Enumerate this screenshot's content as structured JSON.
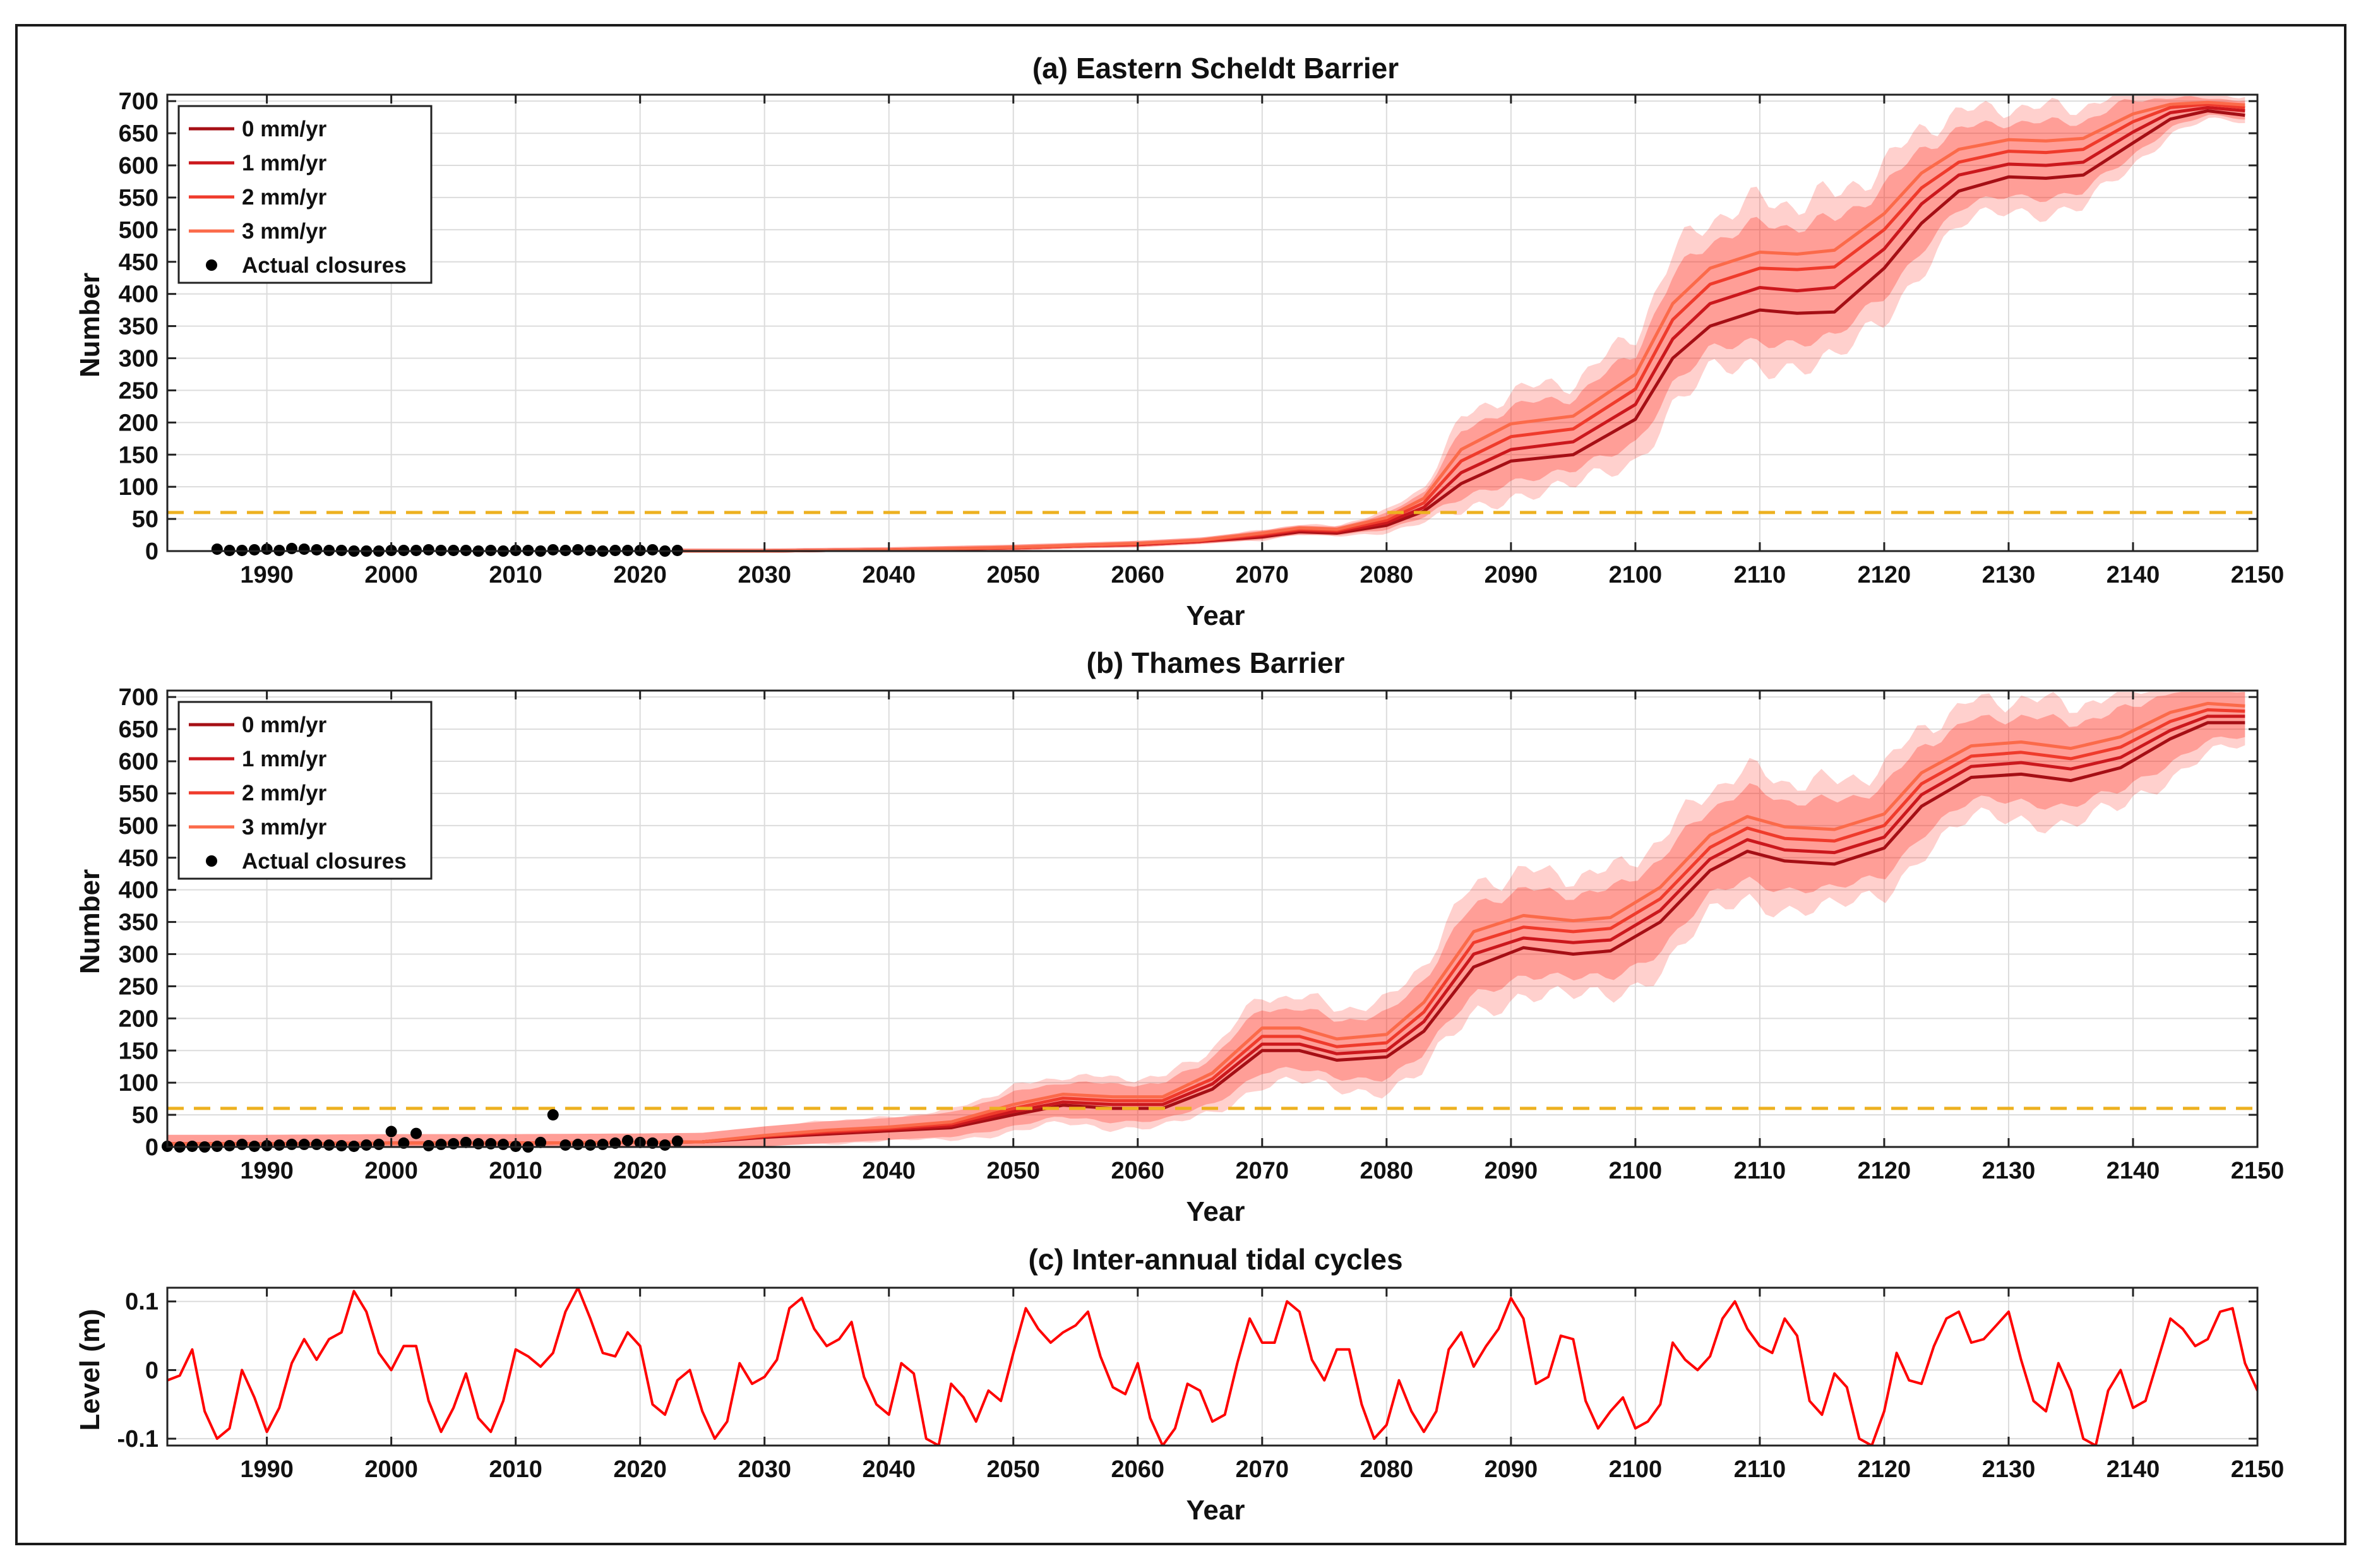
{
  "chart_data": [
    {
      "type": "line",
      "title": "(a) Eastern Scheldt  Barrier",
      "xlabel": "Year",
      "ylabel": "Number",
      "xlim": [
        1982,
        2150
      ],
      "ylim": [
        0,
        710
      ],
      "x_ticks": [
        1990,
        2000,
        2010,
        2020,
        2030,
        2040,
        2050,
        2060,
        2070,
        2080,
        2090,
        2100,
        2110,
        2120,
        2130,
        2140,
        2150
      ],
      "y_ticks": [
        0,
        50,
        100,
        150,
        200,
        250,
        300,
        350,
        400,
        450,
        500,
        550,
        600,
        650,
        700
      ],
      "grid": true,
      "legend_position": "top-left",
      "threshold": 60,
      "threshold_color": "#EDB120",
      "legend": [
        "0 mm/yr",
        "1 mm/yr",
        "2 mm/yr",
        "3 mm/yr",
        "Actual closures"
      ],
      "x": [
        2023,
        2030,
        2040,
        2050,
        2055,
        2060,
        2065,
        2070,
        2073,
        2076,
        2080,
        2083,
        2086,
        2090,
        2095,
        2100,
        2103,
        2106,
        2110,
        2113,
        2116,
        2120,
        2123,
        2126,
        2130,
        2133,
        2136,
        2140,
        2143,
        2146,
        2149
      ],
      "series": [
        {
          "name": "0 mm/yr",
          "color": "#A50F15",
          "values": [
            0,
            0,
            2,
            5,
            8,
            10,
            15,
            22,
            30,
            28,
            40,
            62,
            105,
            140,
            150,
            205,
            300,
            350,
            375,
            370,
            372,
            440,
            510,
            560,
            582,
            580,
            585,
            635,
            672,
            685,
            678
          ]
        },
        {
          "name": "1 mm/yr",
          "color": "#CB181D",
          "values": [
            0,
            0,
            2,
            5,
            8,
            10,
            15,
            24,
            32,
            30,
            44,
            68,
            122,
            158,
            170,
            228,
            330,
            385,
            410,
            405,
            410,
            470,
            540,
            585,
            602,
            600,
            605,
            652,
            682,
            690,
            685
          ]
        },
        {
          "name": "2 mm/yr",
          "color": "#EF3B2C",
          "values": [
            0,
            0,
            2,
            5,
            8,
            11,
            16,
            26,
            34,
            32,
            48,
            75,
            140,
            178,
            190,
            252,
            360,
            415,
            440,
            438,
            442,
            500,
            565,
            605,
            622,
            620,
            625,
            668,
            690,
            695,
            690
          ]
        },
        {
          "name": "3 mm/yr",
          "color": "#FB6A4A",
          "values": [
            0,
            0,
            2,
            6,
            9,
            12,
            17,
            28,
            36,
            34,
            52,
            82,
            158,
            198,
            210,
            275,
            385,
            440,
            465,
            462,
            468,
            525,
            588,
            625,
            640,
            638,
            642,
            680,
            695,
            698,
            694
          ]
        }
      ],
      "actual_closures": {
        "years": [
          1986,
          1987,
          1988,
          1989,
          1990,
          1991,
          1992,
          1993,
          1994,
          1995,
          1996,
          1997,
          1998,
          1999,
          2000,
          2001,
          2002,
          2003,
          2004,
          2005,
          2006,
          2007,
          2008,
          2009,
          2010,
          2011,
          2012,
          2013,
          2014,
          2015,
          2016,
          2017,
          2018,
          2019,
          2020,
          2021,
          2022,
          2023
        ],
        "values": [
          3,
          1,
          1,
          2,
          3,
          1,
          4,
          3,
          2,
          1,
          1,
          0,
          0,
          0,
          1,
          1,
          1,
          2,
          1,
          1,
          1,
          0,
          1,
          0,
          1,
          1,
          0,
          2,
          1,
          2,
          1,
          0,
          1,
          1,
          1,
          2,
          0,
          1
        ]
      }
    },
    {
      "type": "line",
      "title": "(b) Thames Barrier",
      "xlabel": "Year",
      "ylabel": "Number",
      "xlim": [
        1982,
        2150
      ],
      "ylim": [
        0,
        710
      ],
      "x_ticks": [
        1990,
        2000,
        2010,
        2020,
        2030,
        2040,
        2050,
        2060,
        2070,
        2080,
        2090,
        2100,
        2110,
        2120,
        2130,
        2140,
        2150
      ],
      "y_ticks": [
        0,
        50,
        100,
        150,
        200,
        250,
        300,
        350,
        400,
        450,
        500,
        550,
        600,
        650,
        700
      ],
      "grid": true,
      "legend_position": "top-left",
      "threshold": 60,
      "threshold_color": "#EDB120",
      "legend": [
        "0 mm/yr",
        "1 mm/yr",
        "2 mm/yr",
        "3 mm/yr",
        "Actual closures"
      ],
      "x": [
        1982,
        1990,
        2000,
        2010,
        2020,
        2025,
        2030,
        2035,
        2040,
        2045,
        2050,
        2054,
        2058,
        2062,
        2066,
        2070,
        2073,
        2076,
        2080,
        2083,
        2087,
        2091,
        2095,
        2098,
        2102,
        2106,
        2109,
        2112,
        2116,
        2120,
        2123,
        2127,
        2131,
        2135,
        2139,
        2143,
        2146,
        2149
      ],
      "series": [
        {
          "name": "0 mm/yr",
          "color": "#A50F15",
          "values": [
            5,
            5,
            6,
            6,
            7,
            8,
            15,
            20,
            25,
            30,
            50,
            65,
            60,
            60,
            90,
            150,
            150,
            135,
            140,
            180,
            280,
            310,
            300,
            305,
            350,
            430,
            460,
            445,
            440,
            465,
            530,
            575,
            580,
            570,
            590,
            635,
            660,
            660
          ]
        },
        {
          "name": "1 mm/yr",
          "color": "#CB181D",
          "values": [
            5,
            5,
            6,
            6,
            7,
            8,
            16,
            22,
            27,
            33,
            55,
            70,
            66,
            66,
            98,
            160,
            160,
            145,
            150,
            195,
            300,
            325,
            318,
            322,
            368,
            448,
            478,
            462,
            458,
            482,
            548,
            592,
            598,
            588,
            606,
            648,
            670,
            670
          ]
        },
        {
          "name": "2 mm/yr",
          "color": "#EF3B2C",
          "values": [
            5,
            5,
            6,
            6,
            7,
            8,
            17,
            24,
            29,
            36,
            60,
            76,
            72,
            72,
            106,
            172,
            172,
            156,
            162,
            210,
            318,
            342,
            335,
            340,
            386,
            466,
            496,
            480,
            476,
            500,
            565,
            608,
            614,
            604,
            622,
            662,
            680,
            678
          ]
        },
        {
          "name": "3 mm/yr",
          "color": "#FB6A4A",
          "values": [
            5,
            5,
            6,
            6,
            7,
            8,
            18,
            26,
            31,
            39,
            66,
            82,
            78,
            78,
            115,
            185,
            185,
            168,
            175,
            225,
            335,
            360,
            352,
            357,
            404,
            485,
            514,
            498,
            494,
            518,
            582,
            624,
            630,
            620,
            638,
            676,
            690,
            686
          ]
        }
      ],
      "actual_closures": {
        "years": [
          1982,
          1983,
          1984,
          1985,
          1986,
          1987,
          1988,
          1989,
          1990,
          1991,
          1992,
          1993,
          1994,
          1995,
          1996,
          1997,
          1998,
          1999,
          2000,
          2001,
          2002,
          2003,
          2004,
          2005,
          2006,
          2007,
          2008,
          2009,
          2010,
          2011,
          2012,
          2013,
          2014,
          2015,
          2016,
          2017,
          2018,
          2019,
          2020,
          2021,
          2022,
          2023
        ],
        "values": [
          1,
          0,
          1,
          0,
          1,
          2,
          4,
          1,
          2,
          3,
          4,
          4,
          4,
          3,
          2,
          1,
          3,
          4,
          24,
          6,
          21,
          2,
          4,
          5,
          7,
          5,
          5,
          4,
          1,
          0,
          7,
          50,
          3,
          4,
          3,
          4,
          6,
          10,
          7,
          6,
          3,
          9
        ]
      }
    },
    {
      "type": "line",
      "title": "(c) Inter-annual tidal cycles",
      "xlabel": "Year",
      "ylabel": "Level (m)",
      "xlim": [
        1982,
        2150
      ],
      "ylim": [
        -0.11,
        0.12
      ],
      "x_ticks": [
        1990,
        2000,
        2010,
        2020,
        2030,
        2040,
        2050,
        2060,
        2070,
        2080,
        2090,
        2100,
        2110,
        2120,
        2130,
        2140,
        2150
      ],
      "y_ticks": [
        -0.1,
        0,
        0.1
      ],
      "y_tick_labels": [
        "-0.1",
        "0",
        "0.1"
      ],
      "grid": true,
      "series": [
        {
          "name": "tidal cycle",
          "color": "#FF0000",
          "x": [
            1982,
            1983,
            1984,
            1985,
            1986,
            1987,
            1988,
            1989,
            1990,
            1991,
            1992,
            1993,
            1994,
            1995,
            1996,
            1997,
            1998,
            1999,
            2000,
            2001,
            2002,
            2003,
            2004,
            2005,
            2006,
            2007,
            2008,
            2009,
            2010,
            2011,
            2012,
            2013,
            2014,
            2015,
            2016,
            2017,
            2018,
            2019,
            2020,
            2021,
            2022,
            2023,
            2024,
            2025,
            2026,
            2027,
            2028,
            2029,
            2030,
            2031,
            2032,
            2033,
            2034,
            2035,
            2036,
            2037,
            2038,
            2039,
            2040,
            2041,
            2042,
            2043,
            2044,
            2045,
            2046,
            2047,
            2048,
            2049,
            2050,
            2051,
            2052,
            2053,
            2054,
            2055,
            2056,
            2057,
            2058,
            2059,
            2060,
            2061,
            2062,
            2063,
            2064,
            2065,
            2066,
            2067,
            2068,
            2069,
            2070,
            2071,
            2072,
            2073,
            2074,
            2075,
            2076,
            2077,
            2078,
            2079,
            2080,
            2081,
            2082,
            2083,
            2084,
            2085,
            2086,
            2087,
            2088,
            2089,
            2090,
            2091,
            2092,
            2093,
            2094,
            2095,
            2096,
            2097,
            2098,
            2099,
            2100,
            2101,
            2102,
            2103,
            2104,
            2105,
            2106,
            2107,
            2108,
            2109,
            2110,
            2111,
            2112,
            2113,
            2114,
            2115,
            2116,
            2117,
            2118,
            2119,
            2120,
            2121,
            2122,
            2123,
            2124,
            2125,
            2126,
            2127,
            2128,
            2129,
            2130,
            2131,
            2132,
            2133,
            2134,
            2135,
            2136,
            2137,
            2138,
            2139,
            2140,
            2141,
            2142,
            2143,
            2144,
            2145,
            2146,
            2147,
            2148,
            2149,
            2150
          ],
          "values": [
            -0.015,
            -0.008,
            0.03,
            -0.06,
            -0.1,
            -0.085,
            0.0,
            -0.04,
            -0.09,
            -0.055,
            0.01,
            0.045,
            0.015,
            0.045,
            0.055,
            0.115,
            0.085,
            0.025,
            0.0,
            0.035,
            0.035,
            -0.045,
            -0.09,
            -0.055,
            -0.005,
            -0.07,
            -0.09,
            -0.045,
            0.03,
            0.02,
            0.005,
            0.025,
            0.085,
            0.12,
            0.075,
            0.025,
            0.02,
            0.055,
            0.035,
            -0.05,
            -0.065,
            -0.015,
            0.0,
            -0.06,
            -0.1,
            -0.075,
            0.01,
            -0.02,
            -0.01,
            0.015,
            0.09,
            0.105,
            0.06,
            0.035,
            0.045,
            0.07,
            -0.01,
            -0.05,
            -0.065,
            0.01,
            -0.005,
            -0.1,
            -0.11,
            -0.02,
            -0.04,
            -0.075,
            -0.03,
            -0.045,
            0.025,
            0.09,
            0.06,
            0.04,
            0.055,
            0.065,
            0.085,
            0.02,
            -0.025,
            -0.035,
            0.01,
            -0.07,
            -0.11,
            -0.085,
            -0.02,
            -0.03,
            -0.075,
            -0.065,
            0.01,
            0.075,
            0.04,
            0.04,
            0.1,
            0.085,
            0.015,
            -0.015,
            0.03,
            0.03,
            -0.05,
            -0.1,
            -0.08,
            -0.015,
            -0.06,
            -0.09,
            -0.06,
            0.03,
            0.055,
            0.005,
            0.035,
            0.06,
            0.105,
            0.075,
            -0.02,
            -0.01,
            0.05,
            0.045,
            -0.045,
            -0.085,
            -0.06,
            -0.04,
            -0.085,
            -0.075,
            -0.05,
            0.04,
            0.015,
            0.0,
            0.02,
            0.075,
            0.1,
            0.06,
            0.035,
            0.025,
            0.075,
            0.05,
            -0.045,
            -0.065,
            -0.005,
            -0.025,
            -0.1,
            -0.11,
            -0.06,
            0.025,
            -0.015,
            -0.02,
            0.035,
            0.075,
            0.085,
            0.04,
            0.045,
            0.065,
            0.085,
            0.015,
            -0.045,
            -0.06,
            0.01,
            -0.03,
            -0.1,
            -0.11,
            -0.03,
            0.0,
            -0.055,
            -0.045,
            0.015,
            0.075,
            0.06,
            0.035,
            0.045,
            0.085,
            0.09,
            0.01,
            -0.03
          ]
        }
      ]
    }
  ]
}
